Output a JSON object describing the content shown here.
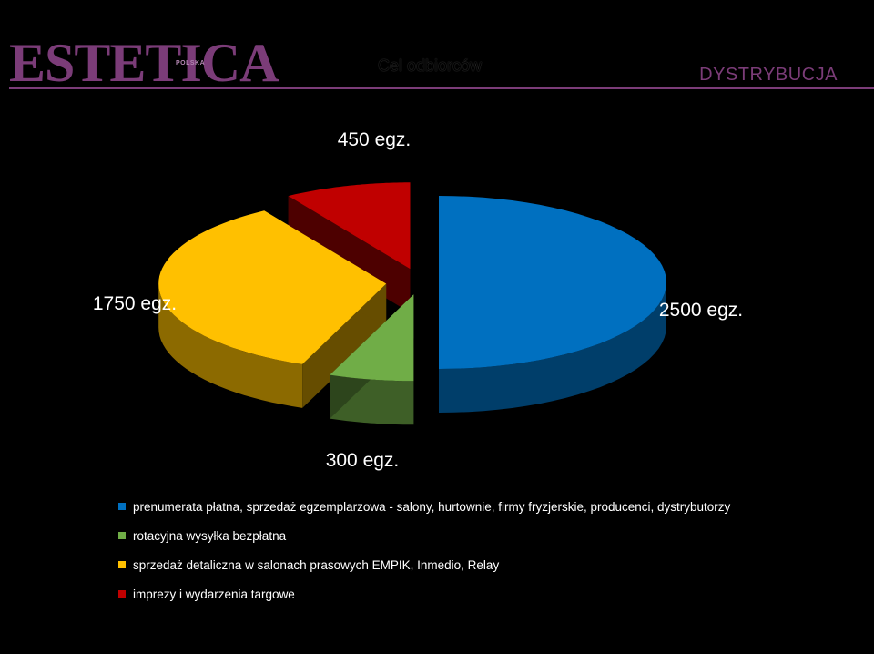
{
  "header": {
    "logo": "ESTETICA",
    "logo_sub": "POLSKA",
    "title": "Cel odbiorców",
    "section": "DYSTRYBUCJA"
  },
  "chart_data": {
    "type": "pie",
    "style": "3d-exploded",
    "slices": [
      {
        "name": "prenumerata płatna, sprzedaż egzemplarzowa - salony, hurtownie, firmy fryzjerskie, producenci, dystrybutorzy",
        "value": 2500,
        "label": "2500 egz.",
        "color": "#0070c0"
      },
      {
        "name": "rotacyjna wysyłka bezpłatna",
        "value": 300,
        "label": "300 egz.",
        "color": "#70ad47"
      },
      {
        "name": "sprzedaż detaliczna w salonach prasowych EMPIK, Inmedio, Relay",
        "value": 1750,
        "label": "1750 egz.",
        "color": "#ffc000"
      },
      {
        "name": "imprezy i wydarzenia targowe",
        "value": 450,
        "label": "450 egz.",
        "color": "#c00000"
      }
    ],
    "legend_position": "bottom-left"
  }
}
